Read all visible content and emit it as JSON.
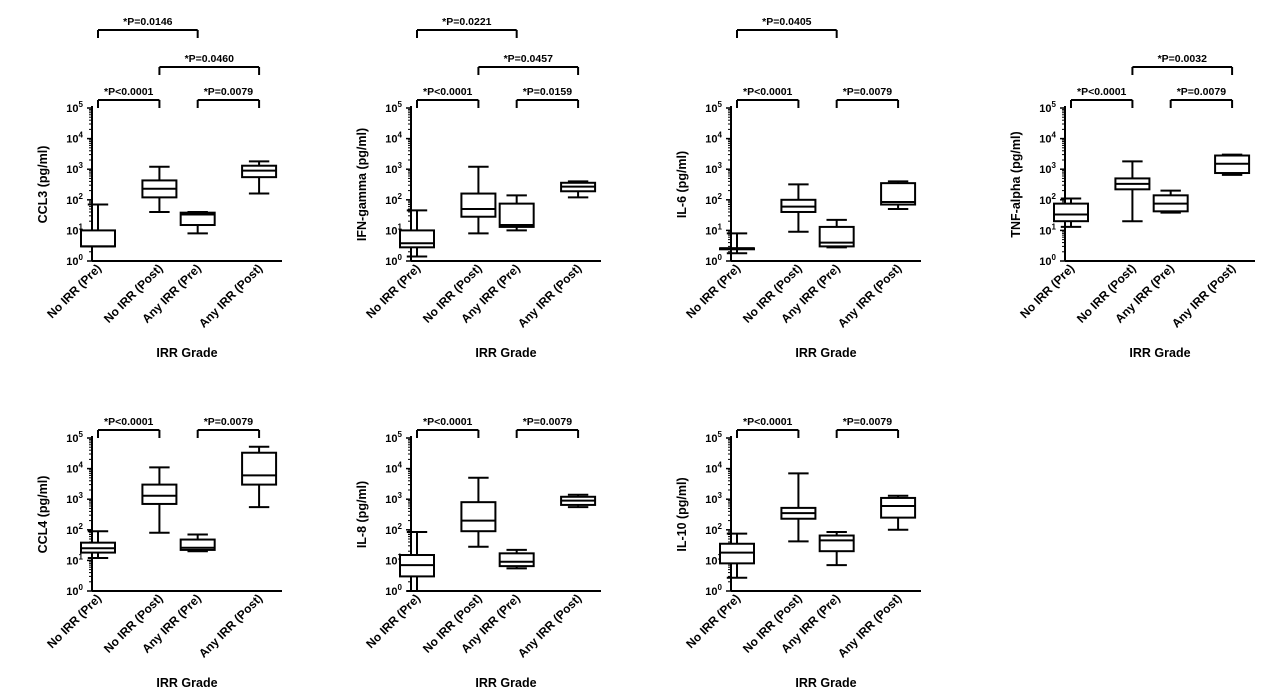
{
  "figure": {
    "xlabel": "IRR Grade",
    "categories": [
      "No IRR (Pre)",
      "No IRR (Post)",
      "Any IRR (Pre)",
      "Any IRR (Post)"
    ]
  },
  "chart_data": [
    {
      "type": "box",
      "ylabel": "CCL3 (pg/ml)",
      "xlabel": "IRR Grade",
      "yscale": "log",
      "ylim": [
        1,
        100000
      ],
      "yticks": [
        "10^0",
        "10^1",
        "10^2",
        "10^3",
        "10^4",
        "10^5"
      ],
      "categories": [
        "No IRR (Pre)",
        "No IRR (Post)",
        "Any IRR (Pre)",
        "Any IRR (Post)"
      ],
      "boxes": [
        {
          "min": 3,
          "q1": 3,
          "median": 3,
          "q3": 10,
          "max": 70
        },
        {
          "min": 40,
          "q1": 120,
          "median": 230,
          "q3": 430,
          "max": 1200
        },
        {
          "min": 8,
          "q1": 15,
          "median": 33,
          "q3": 38,
          "max": 40
        },
        {
          "min": 160,
          "q1": 550,
          "median": 900,
          "q3": 1300,
          "max": 1800
        }
      ],
      "annotations": [
        {
          "text": "*P=0.0146",
          "from": 0,
          "to": 2
        },
        {
          "text": "*P=0.0460",
          "from": 1,
          "to": 3
        },
        {
          "text": "*P<0.0001",
          "from": 0,
          "to": 1
        },
        {
          "text": "*P=0.0079",
          "from": 2,
          "to": 3
        }
      ]
    },
    {
      "type": "box",
      "ylabel": "IFN-gamma (pg/ml)",
      "xlabel": "IRR Grade",
      "yscale": "log",
      "ylim": [
        1,
        100000
      ],
      "yticks": [
        "10^0",
        "10^1",
        "10^2",
        "10^3",
        "10^4",
        "10^5"
      ],
      "categories": [
        "No IRR (Pre)",
        "No IRR (Post)",
        "Any IRR (Pre)",
        "Any IRR (Post)"
      ],
      "boxes": [
        {
          "min": 1.4,
          "q1": 2.8,
          "median": 3.8,
          "q3": 10,
          "max": 45
        },
        {
          "min": 8,
          "q1": 28,
          "median": 50,
          "q3": 160,
          "max": 1200
        },
        {
          "min": 10,
          "q1": 13,
          "median": 15,
          "q3": 75,
          "max": 140
        },
        {
          "min": 120,
          "q1": 190,
          "median": 270,
          "q3": 360,
          "max": 400
        }
      ],
      "annotations": [
        {
          "text": "*P=0.0221",
          "from": 0,
          "to": 2
        },
        {
          "text": "*P=0.0457",
          "from": 1,
          "to": 3
        },
        {
          "text": "*P<0.0001",
          "from": 0,
          "to": 1
        },
        {
          "text": "*P=0.0159",
          "from": 2,
          "to": 3
        }
      ]
    },
    {
      "type": "box",
      "ylabel": "IL-6 (pg/ml)",
      "xlabel": "IRR Grade",
      "yscale": "log",
      "ylim": [
        1,
        100000
      ],
      "yticks": [
        "10^0",
        "10^1",
        "10^2",
        "10^3",
        "10^4",
        "10^5"
      ],
      "categories": [
        "No IRR (Pre)",
        "No IRR (Post)",
        "Any IRR (Pre)",
        "Any IRR (Post)"
      ],
      "boxes": [
        {
          "min": 1.8,
          "q1": 2.6,
          "median": 2.6,
          "q3": 2.6,
          "max": 8
        },
        {
          "min": 9,
          "q1": 40,
          "median": 60,
          "q3": 100,
          "max": 320
        },
        {
          "min": 2.8,
          "q1": 3,
          "median": 4,
          "q3": 13,
          "max": 22
        },
        {
          "min": 50,
          "q1": 70,
          "median": 85,
          "q3": 350,
          "max": 400
        }
      ],
      "annotations": [
        {
          "text": "*P=0.0405",
          "from": 0,
          "to": 2
        },
        {
          "text": "*P<0.0001",
          "from": 0,
          "to": 1
        },
        {
          "text": "*P=0.0079",
          "from": 2,
          "to": 3
        }
      ]
    },
    {
      "type": "box",
      "ylabel": "TNF-alpha (pg/ml)",
      "xlabel": "IRR Grade",
      "yscale": "log",
      "ylim": [
        1,
        100000
      ],
      "yticks": [
        "10^0",
        "10^1",
        "10^2",
        "10^3",
        "10^4",
        "10^5"
      ],
      "categories": [
        "No IRR (Pre)",
        "No IRR (Post)",
        "Any IRR (Pre)",
        "Any IRR (Post)"
      ],
      "boxes": [
        {
          "min": 13,
          "q1": 20,
          "median": 33,
          "q3": 75,
          "max": 110
        },
        {
          "min": 20,
          "q1": 220,
          "median": 330,
          "q3": 500,
          "max": 1800
        },
        {
          "min": 38,
          "q1": 42,
          "median": 75,
          "q3": 140,
          "max": 200
        },
        {
          "min": 650,
          "q1": 750,
          "median": 1500,
          "q3": 2800,
          "max": 3000
        }
      ],
      "annotations": [
        {
          "text": "*P=0.0032",
          "from": 1,
          "to": 3
        },
        {
          "text": "*P<0.0001",
          "from": 0,
          "to": 1
        },
        {
          "text": "*P=0.0079",
          "from": 2,
          "to": 3
        }
      ]
    },
    {
      "type": "box",
      "ylabel": "CCL4 (pg/ml)",
      "xlabel": "IRR Grade",
      "yscale": "log",
      "ylim": [
        1,
        100000
      ],
      "yticks": [
        "10^0",
        "10^1",
        "10^2",
        "10^3",
        "10^4",
        "10^5"
      ],
      "categories": [
        "No IRR (Pre)",
        "No IRR (Post)",
        "Any IRR (Pre)",
        "Any IRR (Post)"
      ],
      "boxes": [
        {
          "min": 12,
          "q1": 18,
          "median": 25,
          "q3": 38,
          "max": 90
        },
        {
          "min": 80,
          "q1": 700,
          "median": 1300,
          "q3": 3000,
          "max": 11000
        },
        {
          "min": 20,
          "q1": 22,
          "median": 26,
          "q3": 48,
          "max": 70
        },
        {
          "min": 550,
          "q1": 3000,
          "median": 6000,
          "q3": 33000,
          "max": 52000
        }
      ],
      "annotations": [
        {
          "text": "*P<0.0001",
          "from": 0,
          "to": 1
        },
        {
          "text": "*P=0.0079",
          "from": 2,
          "to": 3
        }
      ]
    },
    {
      "type": "box",
      "ylabel": "IL-8 (pg/ml)",
      "xlabel": "IRR Grade",
      "yscale": "log",
      "ylim": [
        1,
        100000
      ],
      "yticks": [
        "10^0",
        "10^1",
        "10^2",
        "10^3",
        "10^4",
        "10^5"
      ],
      "categories": [
        "No IRR (Pre)",
        "No IRR (Post)",
        "Any IRR (Pre)",
        "Any IRR (Post)"
      ],
      "boxes": [
        {
          "min": 1,
          "q1": 3,
          "median": 7,
          "q3": 15,
          "max": 85
        },
        {
          "min": 28,
          "q1": 90,
          "median": 200,
          "q3": 800,
          "max": 5000
        },
        {
          "min": 5.5,
          "q1": 6.5,
          "median": 9,
          "q3": 17,
          "max": 22
        },
        {
          "min": 550,
          "q1": 650,
          "median": 900,
          "q3": 1200,
          "max": 1400
        }
      ],
      "annotations": [
        {
          "text": "*P<0.0001",
          "from": 0,
          "to": 1
        },
        {
          "text": "*P=0.0079",
          "from": 2,
          "to": 3
        }
      ]
    },
    {
      "type": "box",
      "ylabel": "IL-10 (pg/ml)",
      "xlabel": "IRR Grade",
      "yscale": "log",
      "ylim": [
        1,
        100000
      ],
      "yticks": [
        "10^0",
        "10^1",
        "10^2",
        "10^3",
        "10^4",
        "10^5"
      ],
      "categories": [
        "No IRR (Pre)",
        "No IRR (Post)",
        "Any IRR (Pre)",
        "Any IRR (Post)"
      ],
      "boxes": [
        {
          "min": 2.7,
          "q1": 8,
          "median": 18,
          "q3": 35,
          "max": 75
        },
        {
          "min": 42,
          "q1": 230,
          "median": 350,
          "q3": 520,
          "max": 7000
        },
        {
          "min": 7,
          "q1": 20,
          "median": 45,
          "q3": 65,
          "max": 85
        },
        {
          "min": 100,
          "q1": 250,
          "median": 600,
          "q3": 1100,
          "max": 1300
        }
      ],
      "annotations": [
        {
          "text": "*P<0.0001",
          "from": 0,
          "to": 1
        },
        {
          "text": "*P=0.0079",
          "from": 2,
          "to": 3
        }
      ]
    }
  ]
}
